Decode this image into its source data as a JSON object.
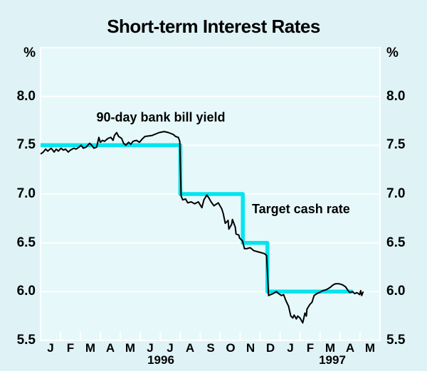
{
  "page": {
    "background_color": "#dff3f7"
  },
  "chart_data": {
    "type": "line",
    "title": "Short-term Interest Rates",
    "ylabel_left": "%",
    "ylabel_right": "%",
    "ylim": [
      5.5,
      8.5
    ],
    "yticks": [
      8.0,
      7.5,
      7.0,
      6.5,
      6.0,
      5.5
    ],
    "ytick_labels": [
      "8.0",
      "7.5",
      "7.0",
      "6.5",
      "6.0",
      "5.5"
    ],
    "grid": true,
    "grid_style": "white horizontal gridlines every 0.5, white plot border, white bottom month ticks",
    "x_unit": "months, Jan 1996 to May 1997",
    "xlim_months": [
      0,
      17
    ],
    "month_labels": [
      "J",
      "F",
      "M",
      "A",
      "M",
      "J",
      "J",
      "A",
      "S",
      "O",
      "N",
      "D",
      "J",
      "F",
      "M",
      "A",
      "M"
    ],
    "year_labels": [
      {
        "text": "1996",
        "x": 6.02
      },
      {
        "text": "1997",
        "x": 14.61
      }
    ],
    "colors": {
      "background": "#dff3f7",
      "plot_background": "#e6f8fa",
      "grid": "#ffffff",
      "bill_yield": "#000000",
      "target_cash_rate": "#00e5ef"
    },
    "annotations": [
      {
        "text": "90-day bank bill yield",
        "x": 6.03,
        "y": 7.79,
        "align": "center"
      },
      {
        "text": "Target cash rate",
        "x": 10.6,
        "y": 6.85,
        "align": "left"
      }
    ],
    "series": [
      {
        "id": "90-day-bank-bill-yield",
        "name": "90-day bank bill yield",
        "color": "#000000",
        "stroke_width": 2,
        "points": [
          [
            0.0,
            7.41
          ],
          [
            0.14,
            7.43
          ],
          [
            0.25,
            7.46
          ],
          [
            0.36,
            7.44
          ],
          [
            0.53,
            7.47
          ],
          [
            0.68,
            7.43
          ],
          [
            0.78,
            7.46
          ],
          [
            0.89,
            7.44
          ],
          [
            1.03,
            7.47
          ],
          [
            1.14,
            7.45
          ],
          [
            1.25,
            7.46
          ],
          [
            1.39,
            7.43
          ],
          [
            1.49,
            7.45
          ],
          [
            1.67,
            7.47
          ],
          [
            1.78,
            7.46
          ],
          [
            1.92,
            7.48
          ],
          [
            2.03,
            7.5
          ],
          [
            2.14,
            7.47
          ],
          [
            2.28,
            7.48
          ],
          [
            2.46,
            7.52
          ],
          [
            2.56,
            7.5
          ],
          [
            2.67,
            7.47
          ],
          [
            2.81,
            7.48
          ],
          [
            2.92,
            7.58
          ],
          [
            2.99,
            7.53
          ],
          [
            3.1,
            7.55
          ],
          [
            3.2,
            7.54
          ],
          [
            3.38,
            7.57
          ],
          [
            3.52,
            7.58
          ],
          [
            3.63,
            7.55
          ],
          [
            3.7,
            7.6
          ],
          [
            3.81,
            7.63
          ],
          [
            3.91,
            7.59
          ],
          [
            4.06,
            7.57
          ],
          [
            4.16,
            7.52
          ],
          [
            4.27,
            7.5
          ],
          [
            4.41,
            7.53
          ],
          [
            4.52,
            7.51
          ],
          [
            4.63,
            7.54
          ],
          [
            4.8,
            7.55
          ],
          [
            4.95,
            7.53
          ],
          [
            5.12,
            7.57
          ],
          [
            5.23,
            7.59
          ],
          [
            5.59,
            7.6
          ],
          [
            5.94,
            7.63
          ],
          [
            6.19,
            7.64
          ],
          [
            6.4,
            7.63
          ],
          [
            6.65,
            7.61
          ],
          [
            6.76,
            7.59
          ],
          [
            6.9,
            7.58
          ],
          [
            6.97,
            7.54
          ],
          [
            7.04,
            6.98
          ],
          [
            7.12,
            6.94
          ],
          [
            7.26,
            6.95
          ],
          [
            7.37,
            6.91
          ],
          [
            7.54,
            6.92
          ],
          [
            7.72,
            6.9
          ],
          [
            7.9,
            6.92
          ],
          [
            8.08,
            6.86
          ],
          [
            8.18,
            6.94
          ],
          [
            8.33,
            6.99
          ],
          [
            8.43,
            6.96
          ],
          [
            8.54,
            6.92
          ],
          [
            8.68,
            6.88
          ],
          [
            8.9,
            6.91
          ],
          [
            9.07,
            6.85
          ],
          [
            9.15,
            6.8
          ],
          [
            9.25,
            6.7
          ],
          [
            9.39,
            6.73
          ],
          [
            9.43,
            6.64
          ],
          [
            9.57,
            6.69
          ],
          [
            9.61,
            6.74
          ],
          [
            9.75,
            6.66
          ],
          [
            9.79,
            6.59
          ],
          [
            9.93,
            6.58
          ],
          [
            9.96,
            6.55
          ],
          [
            10.11,
            6.52
          ],
          [
            10.21,
            6.44
          ],
          [
            10.32,
            6.44
          ],
          [
            10.5,
            6.45
          ],
          [
            10.68,
            6.42
          ],
          [
            10.85,
            6.41
          ],
          [
            11.03,
            6.4
          ],
          [
            11.21,
            6.39
          ],
          [
            11.32,
            6.37
          ],
          [
            11.42,
            5.96
          ],
          [
            11.53,
            5.97
          ],
          [
            11.64,
            5.98
          ],
          [
            11.81,
            6.0
          ],
          [
            11.92,
            5.98
          ],
          [
            12.06,
            5.96
          ],
          [
            12.17,
            5.97
          ],
          [
            12.28,
            5.91
          ],
          [
            12.42,
            5.85
          ],
          [
            12.53,
            5.75
          ],
          [
            12.63,
            5.73
          ],
          [
            12.7,
            5.76
          ],
          [
            12.81,
            5.72
          ],
          [
            12.88,
            5.75
          ],
          [
            12.99,
            5.73
          ],
          [
            13.13,
            5.68
          ],
          [
            13.24,
            5.78
          ],
          [
            13.31,
            5.75
          ],
          [
            13.34,
            5.82
          ],
          [
            13.49,
            5.87
          ],
          [
            13.59,
            5.89
          ],
          [
            13.7,
            5.96
          ],
          [
            13.84,
            5.98
          ],
          [
            13.95,
            5.99
          ],
          [
            14.13,
            6.01
          ],
          [
            14.31,
            6.02
          ],
          [
            14.48,
            6.04
          ],
          [
            14.66,
            6.07
          ],
          [
            14.77,
            6.08
          ],
          [
            14.95,
            6.08
          ],
          [
            15.12,
            6.07
          ],
          [
            15.27,
            6.05
          ],
          [
            15.37,
            6.02
          ],
          [
            15.48,
            5.99
          ],
          [
            15.62,
            6.0
          ],
          [
            15.73,
            5.98
          ],
          [
            15.84,
            5.99
          ],
          [
            15.98,
            5.97
          ],
          [
            16.03,
            6.01
          ],
          [
            16.08,
            5.96
          ],
          [
            16.16,
            6.0
          ]
        ]
      },
      {
        "id": "target-cash-rate",
        "name": "Target cash rate",
        "color": "#00e5ef",
        "stroke_width": 5.5,
        "points": [
          [
            0.0,
            7.5
          ],
          [
            7.0,
            7.5
          ],
          [
            7.0,
            7.0
          ],
          [
            10.13,
            7.0
          ],
          [
            10.13,
            6.5
          ],
          [
            11.36,
            6.5
          ],
          [
            11.36,
            6.0
          ],
          [
            15.63,
            6.0
          ]
        ]
      }
    ]
  }
}
